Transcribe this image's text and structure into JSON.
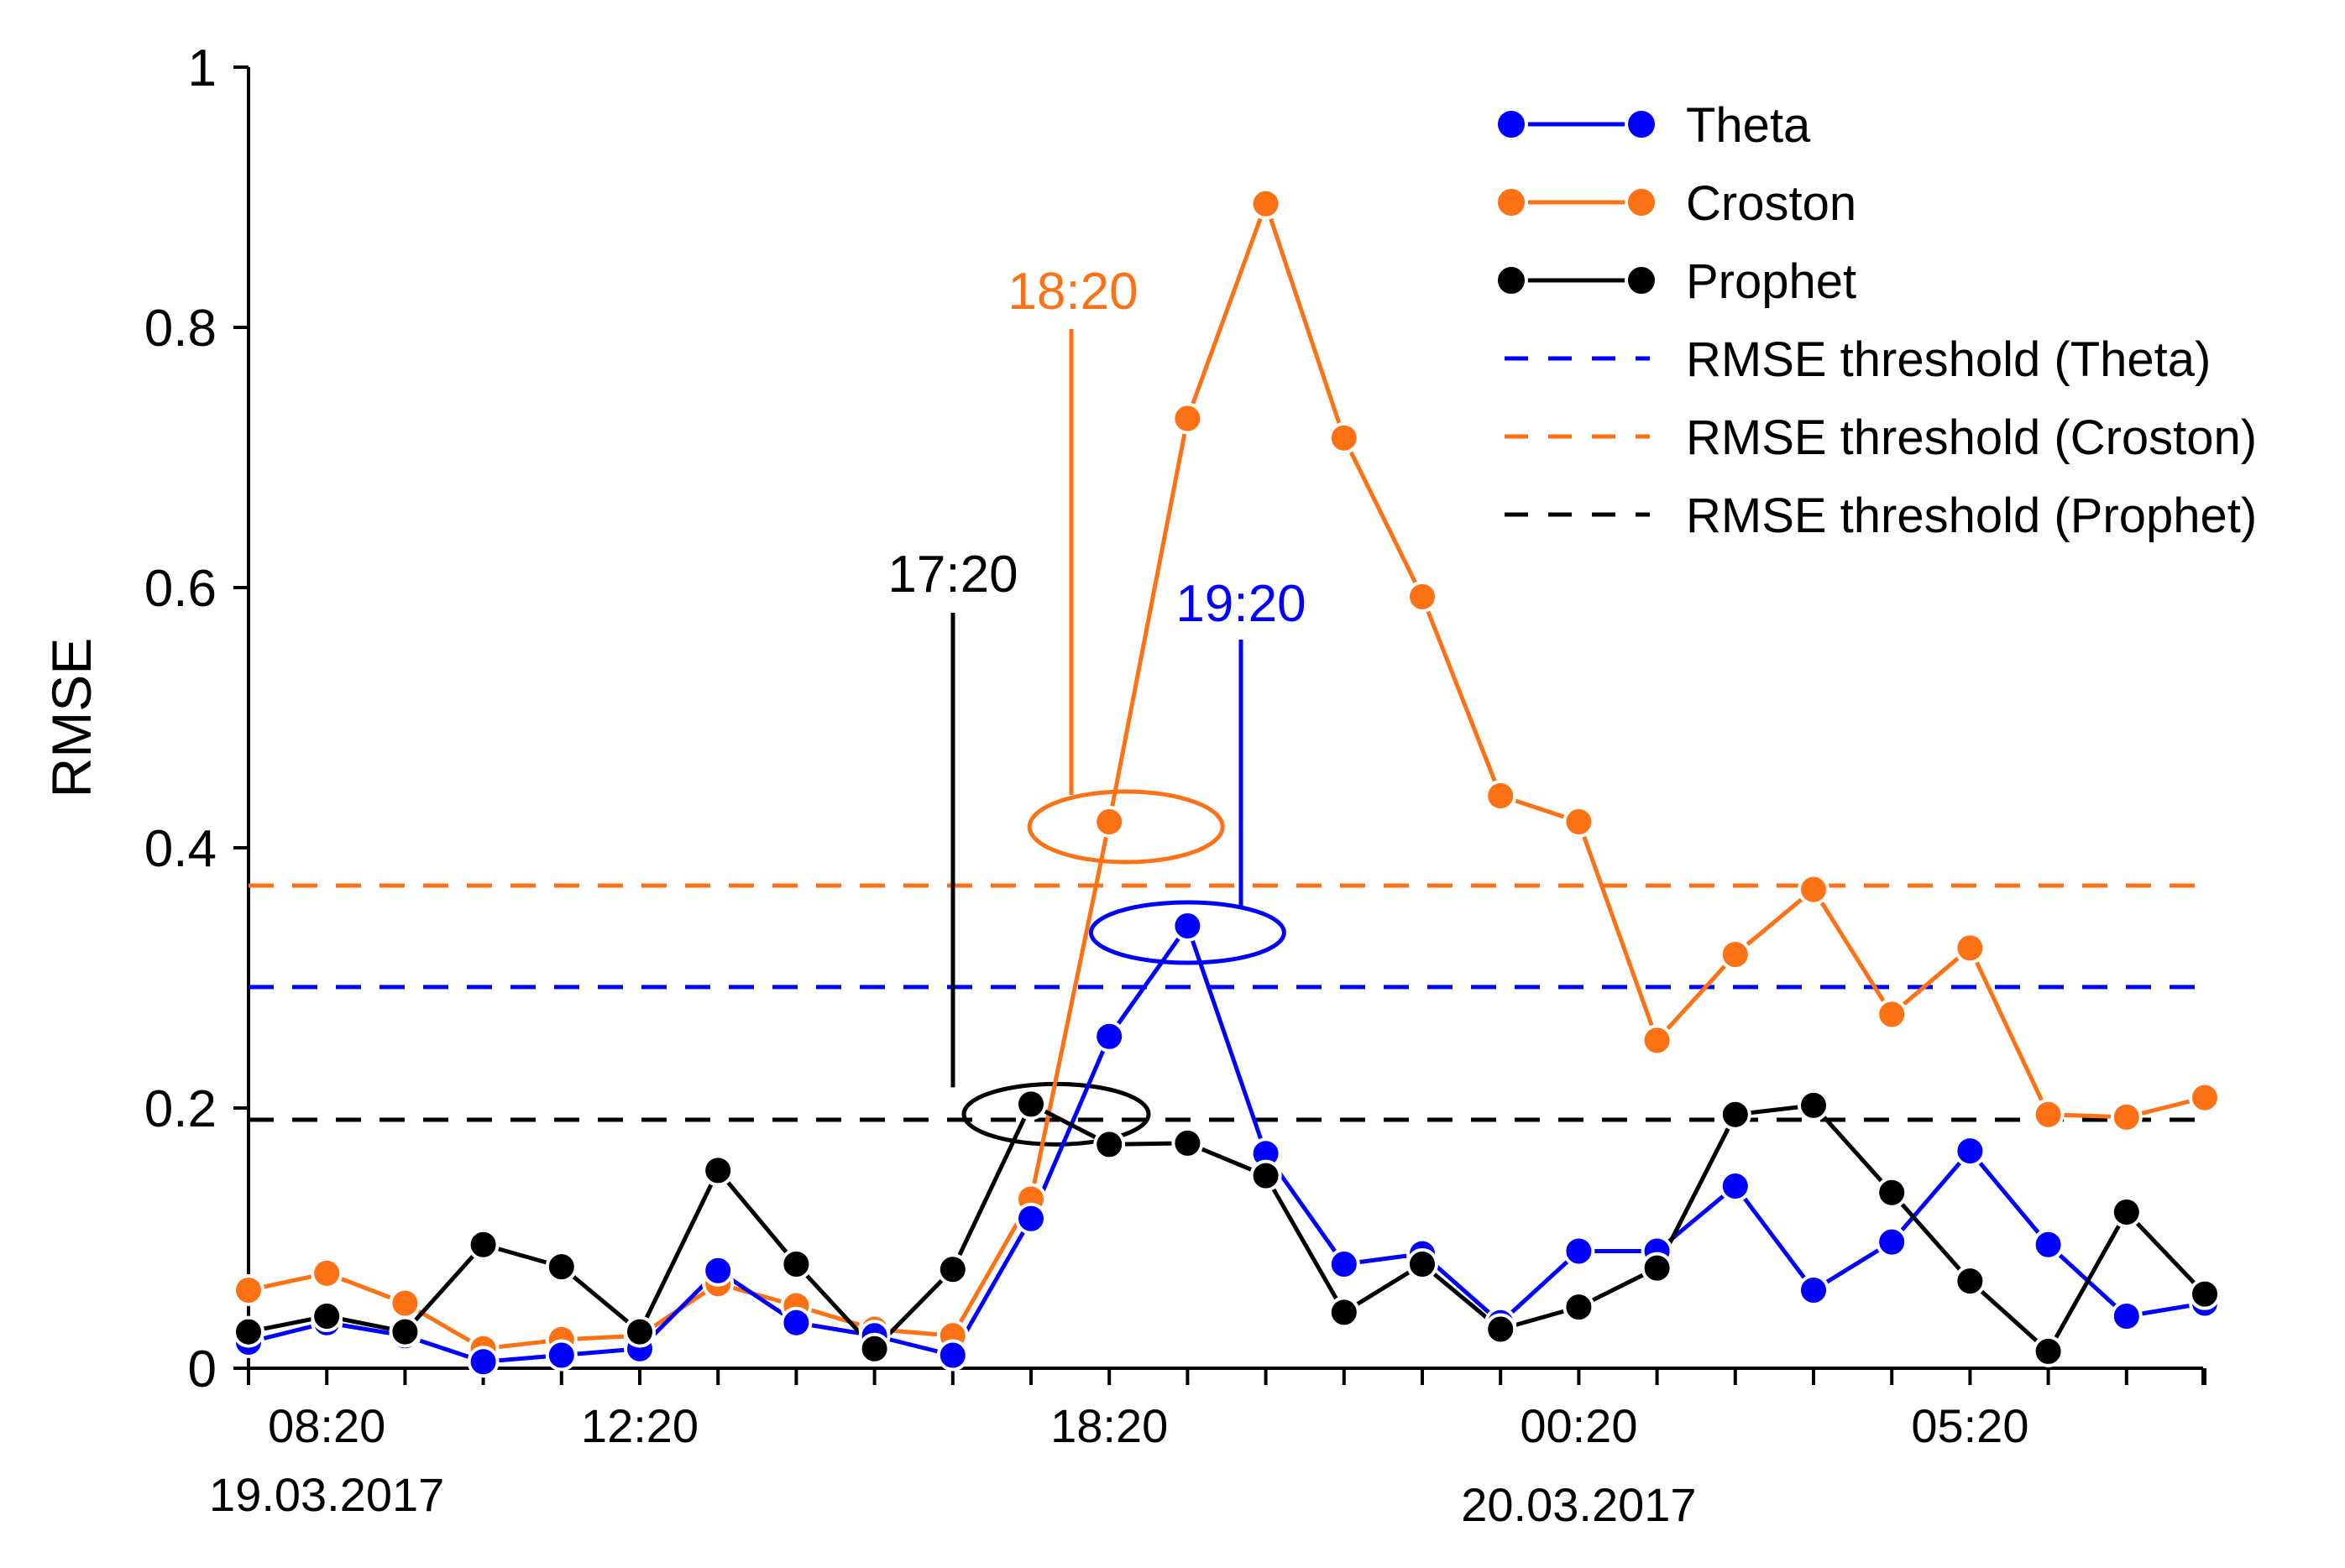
{
  "chart_data": {
    "type": "line",
    "title": "",
    "xlabel": "",
    "ylabel": "RMSE",
    "ylim": [
      0,
      1
    ],
    "yticks": [
      0,
      0.2,
      0.4,
      0.6,
      0.8,
      1
    ],
    "ytick_labels": [
      "0",
      "0.2",
      "0.4",
      "0.6",
      "0.8",
      "1"
    ],
    "n_points": 26,
    "xtick_labels": [
      {
        "index": 1,
        "label": "08:20"
      },
      {
        "index": 5,
        "label": "12:20"
      },
      {
        "index": 11,
        "label": "18:20"
      },
      {
        "index": 17,
        "label": "00:20"
      },
      {
        "index": 22,
        "label": "05:20"
      }
    ],
    "date_labels": [
      {
        "index": 1,
        "label": "19.03.2017"
      },
      {
        "index": 17,
        "label": "20.03.2017"
      }
    ],
    "series": [
      {
        "name": "Theta",
        "color": "#0000ff",
        "values": [
          0.02,
          0.035,
          0.025,
          0.005,
          0.01,
          0.015,
          0.075,
          0.035,
          0.025,
          0.01,
          0.115,
          0.255,
          0.34,
          0.165,
          0.08,
          0.088,
          0.035,
          0.09,
          0.09,
          0.14,
          0.06,
          0.097,
          0.167,
          0.095,
          0.04,
          0.05
        ]
      },
      {
        "name": "Croston",
        "color": "#fd7115",
        "values": [
          0.06,
          0.073,
          0.05,
          0.015,
          0.022,
          0.025,
          0.065,
          0.048,
          0.03,
          0.025,
          0.13,
          0.42,
          0.73,
          0.895,
          0.715,
          0.593,
          0.44,
          0.42,
          0.252,
          0.318,
          0.368,
          0.272,
          0.323,
          0.195,
          0.193,
          0.208
        ]
      },
      {
        "name": "Prophet",
        "color": "#000000",
        "values": [
          0.028,
          0.04,
          0.028,
          0.095,
          0.078,
          0.028,
          0.152,
          0.08,
          0.015,
          0.076,
          0.203,
          0.172,
          0.173,
          0.148,
          0.043,
          0.08,
          0.03,
          0.047,
          0.077,
          0.195,
          0.202,
          0.135,
          0.067,
          0.013,
          0.12,
          0.057
        ]
      }
    ],
    "thresholds": [
      {
        "name": "RMSE threshold (Theta)",
        "value": 0.293,
        "color": "#0000ff"
      },
      {
        "name": "RMSE threshold (Croston)",
        "value": 0.371,
        "color": "#fd7115"
      },
      {
        "name": "RMSE threshold (Prophet)",
        "value": 0.191,
        "color": "#000000"
      }
    ],
    "annotations": [
      {
        "text": "17:20",
        "series": "Prophet",
        "index": 10,
        "color": "#000000"
      },
      {
        "text": "18:20",
        "series": "Croston",
        "index": 11,
        "color": "#fd7115"
      },
      {
        "text": "19:20",
        "series": "Theta",
        "index": 12,
        "color": "#0000ff"
      }
    ],
    "legend": {
      "placement": "top-right",
      "entries": [
        "Theta",
        "Croston",
        "Prophet",
        "RMSE threshold (Theta)",
        "RMSE threshold (Croston)",
        "RMSE threshold (Prophet)"
      ]
    },
    "grid": false
  }
}
